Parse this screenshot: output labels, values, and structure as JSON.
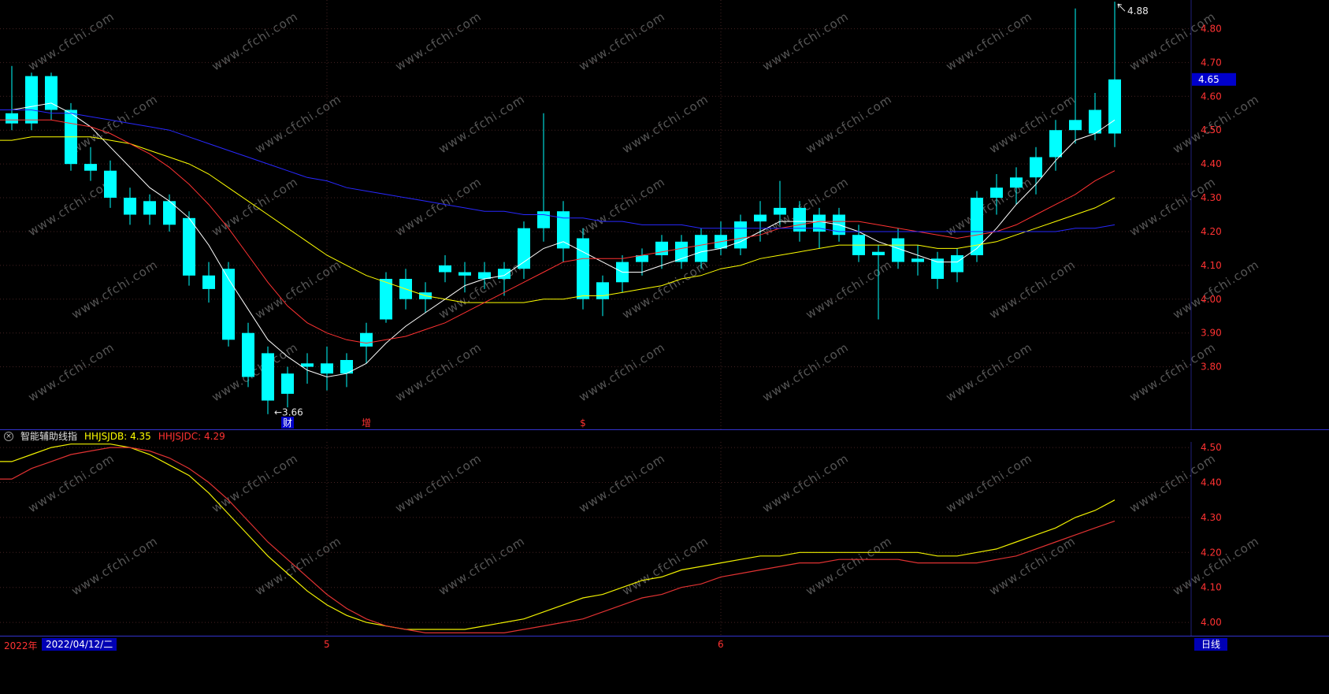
{
  "watermark": "www.cfchi.com",
  "colors": {
    "background": "#000000",
    "grid": "#452222",
    "axis_text": "#ff3232",
    "candle": "#00ffff",
    "watermark": "#565656",
    "divider": "#3232cc",
    "tag_bg": "#0000cc",
    "tag_fg": "#ffffff",
    "chip_bg": "#0000b4"
  },
  "indicator_header": {
    "close_icon": "×",
    "title": "智能辅助线指",
    "fields": [
      {
        "name": "HHJSJDB",
        "text": "HHJSJDB: 4.35",
        "color": "#ffff00"
      },
      {
        "name": "HHJSJDC",
        "text": "HHJSJDC: 4.29",
        "color": "#ff3232"
      }
    ]
  },
  "status_bar": {
    "year": "2022年",
    "date": "2022/04/12/二",
    "period": "日线"
  },
  "chart_data": [
    {
      "id": "main-candlestick",
      "type": "candlestick",
      "title": "",
      "ylim": [
        3.615,
        4.885
      ],
      "yticks": [
        4.8,
        4.7,
        4.6,
        4.5,
        4.4,
        4.3,
        4.2,
        4.1,
        4.0,
        3.9,
        3.8
      ],
      "grid": true,
      "candle_columns": [
        "open",
        "high",
        "low",
        "close"
      ],
      "candles": [
        [
          4.55,
          4.69,
          4.5,
          4.52
        ],
        [
          4.52,
          4.67,
          4.5,
          4.66
        ],
        [
          4.66,
          4.67,
          4.53,
          4.56
        ],
        [
          4.56,
          4.58,
          4.38,
          4.4
        ],
        [
          4.4,
          4.45,
          4.35,
          4.38
        ],
        [
          4.38,
          4.41,
          4.27,
          4.3
        ],
        [
          4.3,
          4.33,
          4.22,
          4.25
        ],
        [
          4.25,
          4.31,
          4.22,
          4.29
        ],
        [
          4.29,
          4.31,
          4.2,
          4.22
        ],
        [
          4.24,
          4.26,
          4.04,
          4.07
        ],
        [
          4.07,
          4.11,
          3.99,
          4.03
        ],
        [
          4.09,
          4.11,
          3.86,
          3.88
        ],
        [
          3.9,
          3.93,
          3.74,
          3.77
        ],
        [
          3.84,
          3.86,
          3.66,
          3.7
        ],
        [
          3.72,
          3.8,
          3.68,
          3.78
        ],
        [
          3.8,
          3.84,
          3.75,
          3.81
        ],
        [
          3.81,
          3.86,
          3.73,
          3.78
        ],
        [
          3.78,
          3.84,
          3.74,
          3.82
        ],
        [
          3.86,
          3.93,
          3.81,
          3.9
        ],
        [
          3.94,
          4.08,
          3.93,
          4.06
        ],
        [
          4.06,
          4.09,
          3.97,
          4.0
        ],
        [
          4.0,
          4.05,
          3.96,
          4.02
        ],
        [
          4.08,
          4.13,
          4.05,
          4.1
        ],
        [
          4.07,
          4.11,
          4.02,
          4.08
        ],
        [
          4.08,
          4.11,
          4.03,
          4.06
        ],
        [
          4.06,
          4.11,
          4.01,
          4.09
        ],
        [
          4.09,
          4.23,
          4.06,
          4.21
        ],
        [
          4.21,
          4.55,
          4.17,
          4.26
        ],
        [
          4.26,
          4.29,
          4.11,
          4.15
        ],
        [
          4.18,
          4.21,
          3.97,
          4.0
        ],
        [
          4.0,
          4.07,
          3.95,
          4.05
        ],
        [
          4.05,
          4.13,
          4.02,
          4.11
        ],
        [
          4.11,
          4.15,
          4.07,
          4.13
        ],
        [
          4.13,
          4.19,
          4.09,
          4.17
        ],
        [
          4.17,
          4.19,
          4.09,
          4.11
        ],
        [
          4.11,
          4.21,
          4.09,
          4.19
        ],
        [
          4.19,
          4.23,
          4.13,
          4.15
        ],
        [
          4.15,
          4.25,
          4.13,
          4.23
        ],
        [
          4.23,
          4.29,
          4.17,
          4.25
        ],
        [
          4.25,
          4.35,
          4.22,
          4.27
        ],
        [
          4.27,
          4.29,
          4.17,
          4.2
        ],
        [
          4.2,
          4.27,
          4.15,
          4.25
        ],
        [
          4.25,
          4.27,
          4.17,
          4.19
        ],
        [
          4.19,
          4.22,
          4.11,
          4.13
        ],
        [
          4.14,
          4.16,
          3.94,
          4.13
        ],
        [
          4.18,
          4.21,
          4.09,
          4.11
        ],
        [
          4.11,
          4.16,
          4.07,
          4.12
        ],
        [
          4.12,
          4.14,
          4.03,
          4.06
        ],
        [
          4.08,
          4.15,
          4.05,
          4.13
        ],
        [
          4.13,
          4.32,
          4.11,
          4.3
        ],
        [
          4.3,
          4.37,
          4.25,
          4.33
        ],
        [
          4.33,
          4.39,
          4.28,
          4.36
        ],
        [
          4.36,
          4.45,
          4.31,
          4.42
        ],
        [
          4.42,
          4.53,
          4.38,
          4.5
        ],
        [
          4.5,
          4.86,
          4.46,
          4.53
        ],
        [
          4.56,
          4.61,
          4.47,
          4.49
        ],
        [
          4.49,
          4.88,
          4.45,
          4.65
        ]
      ],
      "ma_lines": [
        {
          "name": "ma-white",
          "color": "#ffffff",
          "values": [
            4.56,
            4.57,
            4.58,
            4.55,
            4.51,
            4.45,
            4.39,
            4.33,
            4.29,
            4.24,
            4.16,
            4.06,
            3.97,
            3.88,
            3.83,
            3.79,
            3.77,
            3.78,
            3.81,
            3.87,
            3.92,
            3.96,
            4.0,
            4.04,
            4.06,
            4.07,
            4.11,
            4.15,
            4.17,
            4.14,
            4.11,
            4.08,
            4.08,
            4.1,
            4.12,
            4.14,
            4.15,
            4.17,
            4.2,
            4.23,
            4.23,
            4.23,
            4.22,
            4.2,
            4.17,
            4.15,
            4.13,
            4.11,
            4.11,
            4.15,
            4.21,
            4.28,
            4.34,
            4.41,
            4.47,
            4.49,
            4.53
          ]
        },
        {
          "name": "ma-yellow",
          "color": "#ffff00",
          "values": [
            4.47,
            4.48,
            4.48,
            4.48,
            4.48,
            4.47,
            4.46,
            4.44,
            4.42,
            4.4,
            4.37,
            4.33,
            4.29,
            4.25,
            4.21,
            4.17,
            4.13,
            4.1,
            4.07,
            4.05,
            4.03,
            4.01,
            4.0,
            3.99,
            3.99,
            3.99,
            3.99,
            4.0,
            4.0,
            4.01,
            4.01,
            4.02,
            4.03,
            4.04,
            4.06,
            4.07,
            4.09,
            4.1,
            4.12,
            4.13,
            4.14,
            4.15,
            4.16,
            4.16,
            4.16,
            4.16,
            4.16,
            4.15,
            4.15,
            4.16,
            4.17,
            4.19,
            4.21,
            4.23,
            4.25,
            4.27,
            4.3
          ]
        },
        {
          "name": "ma-red",
          "color": "#ff3232",
          "values": [
            4.53,
            4.53,
            4.53,
            4.52,
            4.51,
            4.49,
            4.46,
            4.43,
            4.39,
            4.34,
            4.28,
            4.21,
            4.13,
            4.05,
            3.98,
            3.93,
            3.9,
            3.88,
            3.87,
            3.88,
            3.89,
            3.91,
            3.93,
            3.96,
            3.99,
            4.02,
            4.05,
            4.08,
            4.11,
            4.12,
            4.12,
            4.12,
            4.13,
            4.14,
            4.15,
            4.16,
            4.17,
            4.18,
            4.19,
            4.21,
            4.22,
            4.23,
            4.23,
            4.23,
            4.22,
            4.21,
            4.2,
            4.19,
            4.18,
            4.19,
            4.2,
            4.22,
            4.25,
            4.28,
            4.31,
            4.35,
            4.38
          ]
        },
        {
          "name": "ma-blue",
          "color": "#2828ff",
          "values": [
            4.56,
            4.56,
            4.55,
            4.55,
            4.54,
            4.53,
            4.52,
            4.51,
            4.5,
            4.48,
            4.46,
            4.44,
            4.42,
            4.4,
            4.38,
            4.36,
            4.35,
            4.33,
            4.32,
            4.31,
            4.3,
            4.29,
            4.28,
            4.27,
            4.26,
            4.26,
            4.25,
            4.25,
            4.24,
            4.24,
            4.23,
            4.23,
            4.22,
            4.22,
            4.22,
            4.21,
            4.21,
            4.21,
            4.21,
            4.21,
            4.21,
            4.21,
            4.2,
            4.2,
            4.2,
            4.2,
            4.2,
            4.2,
            4.2,
            4.2,
            4.2,
            4.2,
            4.2,
            4.2,
            4.21,
            4.21,
            4.22
          ]
        }
      ],
      "annotations": [
        {
          "kind": "high",
          "text": "4.88",
          "index": 56,
          "price": 4.88
        },
        {
          "kind": "low",
          "text": "←3.66",
          "index": 13,
          "price": 3.66
        }
      ],
      "last_price_tag": {
        "text": "4.65",
        "price": 4.65
      },
      "event_marks": [
        {
          "name": "cai",
          "label": "财",
          "index": 14,
          "fg": "#ffffff",
          "bg": "#0000cc"
        },
        {
          "name": "zeng",
          "label": "增",
          "index": 18,
          "fg": "#ff3232",
          "bg": null
        },
        {
          "name": "dividend",
          "label": "$",
          "index": 29,
          "fg": "#ff3232",
          "bg": null
        }
      ],
      "month_marks": [
        {
          "label": "5",
          "index": 16
        },
        {
          "label": "6",
          "index": 36
        }
      ]
    },
    {
      "id": "sub-indicator",
      "type": "line",
      "title": "智能辅助线指",
      "ylim": [
        3.962,
        4.516
      ],
      "yticks": [
        4.5,
        4.4,
        4.3,
        4.2,
        4.1,
        4.0
      ],
      "series": [
        {
          "name": "HHJSJDB",
          "color": "#f0f000",
          "values": [
            4.46,
            4.48,
            4.5,
            4.51,
            4.51,
            4.51,
            4.5,
            4.48,
            4.45,
            4.42,
            4.37,
            4.31,
            4.25,
            4.19,
            4.14,
            4.09,
            4.05,
            4.02,
            4.0,
            3.99,
            3.98,
            3.98,
            3.98,
            3.98,
            3.99,
            4.0,
            4.01,
            4.03,
            4.05,
            4.07,
            4.08,
            4.1,
            4.12,
            4.13,
            4.15,
            4.16,
            4.17,
            4.18,
            4.19,
            4.19,
            4.2,
            4.2,
            4.2,
            4.2,
            4.2,
            4.2,
            4.2,
            4.19,
            4.19,
            4.2,
            4.21,
            4.23,
            4.25,
            4.27,
            4.3,
            4.32,
            4.35
          ]
        },
        {
          "name": "HHJSJDC",
          "color": "#e03232",
          "values": [
            4.41,
            4.44,
            4.46,
            4.48,
            4.49,
            4.5,
            4.5,
            4.49,
            4.47,
            4.44,
            4.4,
            4.35,
            4.29,
            4.23,
            4.18,
            4.13,
            4.08,
            4.04,
            4.01,
            3.99,
            3.98,
            3.97,
            3.97,
            3.97,
            3.97,
            3.97,
            3.98,
            3.99,
            4.0,
            4.01,
            4.03,
            4.05,
            4.07,
            4.08,
            4.1,
            4.11,
            4.13,
            4.14,
            4.15,
            4.16,
            4.17,
            4.17,
            4.18,
            4.18,
            4.18,
            4.18,
            4.17,
            4.17,
            4.17,
            4.17,
            4.18,
            4.19,
            4.21,
            4.23,
            4.25,
            4.27,
            4.29
          ]
        }
      ]
    }
  ]
}
